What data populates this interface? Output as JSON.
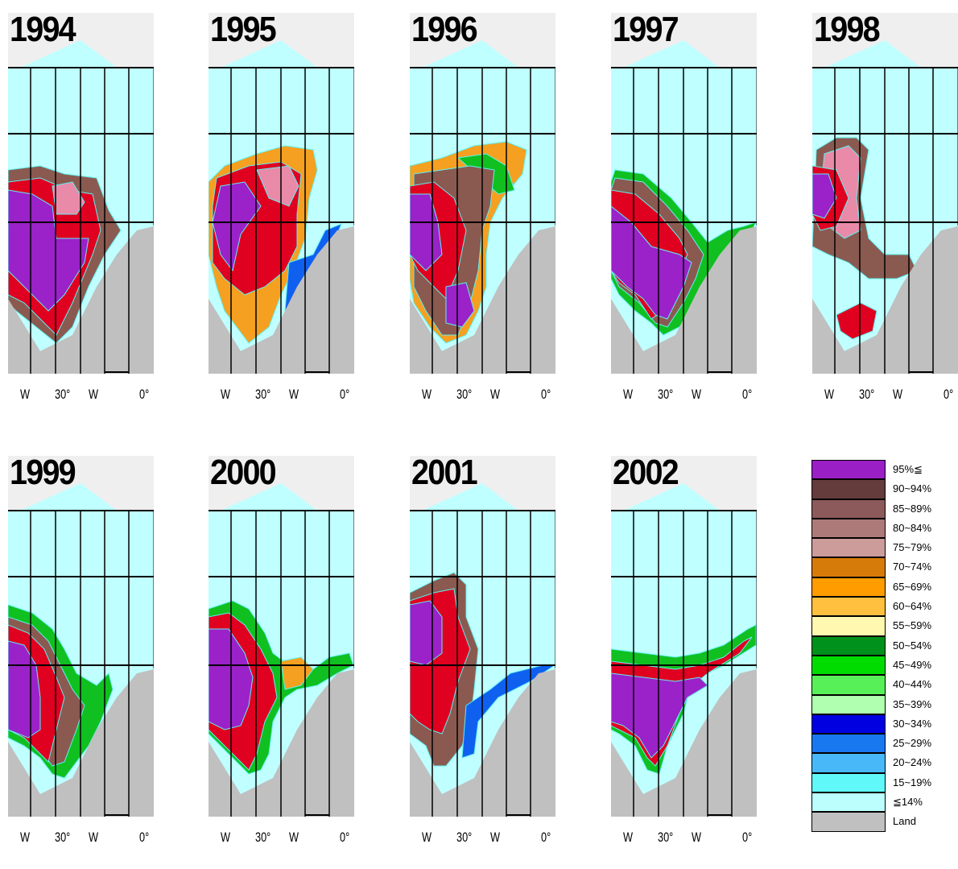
{
  "panels": [
    {
      "year": "1994"
    },
    {
      "year": "1995"
    },
    {
      "year": "1996"
    },
    {
      "year": "1997"
    },
    {
      "year": "1998"
    },
    {
      "year": "1999"
    },
    {
      "year": "2000"
    },
    {
      "year": "2001"
    },
    {
      "year": "2002"
    }
  ],
  "axis_labels": {
    "w_left": "W",
    "deg30": "30°",
    "w_right": "W",
    "deg0": "0°"
  },
  "colors": {
    "sea": "#bfffff",
    "land": "#c0c0c0",
    "cap": "#efefef",
    "purple": "#9a22c8",
    "red": "#e00020",
    "pink": "#e88aa8",
    "brown": "#8a5a50",
    "orange": "#f5a020",
    "green": "#10c020",
    "blue": "#1060f0",
    "cyan": "#60f0f0"
  },
  "legend": [
    {
      "label": "95%≦",
      "color": "#9a1fc4"
    },
    {
      "label": "90~94%",
      "color": "#643c3c"
    },
    {
      "label": "85~89%",
      "color": "#8c5a5a"
    },
    {
      "label": "80~84%",
      "color": "#ac7a78"
    },
    {
      "label": "75~79%",
      "color": "#cc9c9a"
    },
    {
      "label": "70~74%",
      "color": "#d67a0a"
    },
    {
      "label": "65~69%",
      "color": "#ff9c00"
    },
    {
      "label": "60~64%",
      "color": "#ffc040"
    },
    {
      "label": "55~59%",
      "color": "#fff8b0"
    },
    {
      "label": "50~54%",
      "color": "#00901c"
    },
    {
      "label": "45~49%",
      "color": "#00dc00"
    },
    {
      "label": "40~44%",
      "color": "#58f058"
    },
    {
      "label": "35~39%",
      "color": "#b0ffb0"
    },
    {
      "label": "30~34%",
      "color": "#0000e0"
    },
    {
      "label": "25~29%",
      "color": "#1878f0"
    },
    {
      "label": "20~24%",
      "color": "#48b8f8"
    },
    {
      "label": "15~19%",
      "color": "#60f8f8"
    },
    {
      "label": "≦14%",
      "color": "#bcfefe"
    },
    {
      "label": "Land",
      "color": "#c0c0c0"
    }
  ]
}
